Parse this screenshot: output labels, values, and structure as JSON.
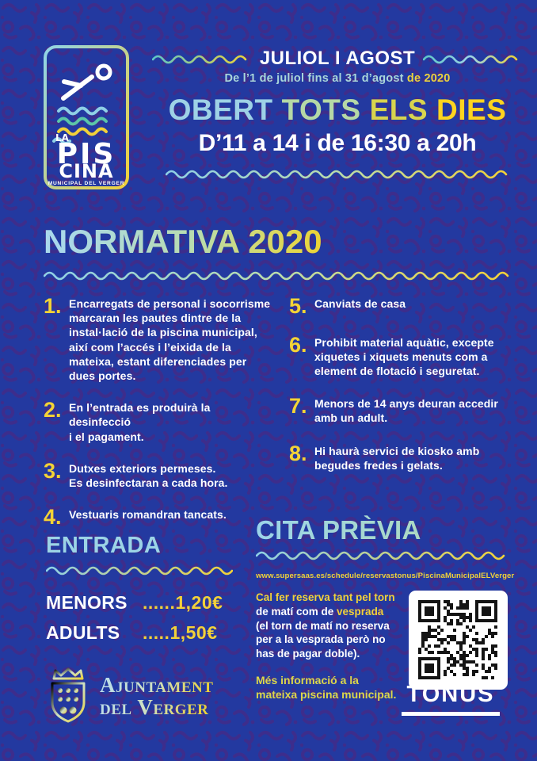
{
  "logo": {
    "la": "LA",
    "pis": "PIS",
    "cina": "CINA",
    "subtitle": "MUNICIPAL DEL VERGER"
  },
  "header": {
    "season": "JULIOL I AGOST",
    "date_main": "De l’1 de juliol fins al 31 d’agost ",
    "date_year": "de 2020",
    "open_words": [
      {
        "text": "OBERT",
        "color": "#9ed2e6"
      },
      {
        "text": "TOTS",
        "color": "#b5d9a6"
      },
      {
        "text": "ELS",
        "color": "#d8d44e"
      },
      {
        "text": "DIES",
        "color": "#fdd41f"
      }
    ],
    "hours": "D’11 a 14 i de 16:30 a 20h"
  },
  "normativa": {
    "title": "NORMATIVA 2020",
    "rules_left": [
      {
        "num": "1.",
        "text": "Encarregats de personal i socorrisme\nmarcaran les pautes dintre de la\ninstal·lació de la piscina municipal,\naixí com l’accés i l’eixida de la\nmateixa, estant diferenciades per\ndues portes."
      },
      {
        "num": "2.",
        "text": "En l’entrada es produirà la desinfecció\ni el pagament."
      },
      {
        "num": "3.",
        "text": "Dutxes exteriors permeses.\nEs desinfectaran a cada hora."
      },
      {
        "num": "4.",
        "text": "Vestuaris romandran tancats."
      }
    ],
    "rules_right": [
      {
        "num": "5.",
        "text": "Canviats de casa"
      },
      {
        "num": "6.",
        "text": "Prohibit material aquàtic, excepte\nxiquetes i xiquets menuts com a\nelement de flotació i seguretat."
      },
      {
        "num": "7.",
        "text": "Menors de 14 anys deuran accedir\namb un adult."
      },
      {
        "num": "8.",
        "text": "Hi haurà servici de kiosko amb\nbegudes fredes i gelats."
      }
    ]
  },
  "entrada": {
    "title": "ENTRADA",
    "rows": [
      {
        "label": "MENORS",
        "value": "......1,20€"
      },
      {
        "label": "ADULTS",
        "value": ".....1,50€"
      }
    ]
  },
  "cita": {
    "title": "CITA PRÈVIA",
    "url": "www.supersaas.es/schedule/reservastonus/PiscinaMunicipalELVerger",
    "note_segments": [
      {
        "text": "Cal fer reserva tant pel torn\n",
        "color": "#f2d139"
      },
      {
        "text": "de matí com de ",
        "color": "#ffffff"
      },
      {
        "text": "vesprada\n",
        "color": "#f2d139"
      },
      {
        "text": "(el torn de matí no reserva per a la vesprada però no has de pagar doble).",
        "color": "#ffffff"
      }
    ],
    "more_info": "Més informació a la\nmateixa piscina municipal."
  },
  "footer": {
    "ajuntament_line1": "Ajuntament",
    "ajuntament_line2": "del Verger",
    "tonus": "TONUS"
  },
  "colors": {
    "background_blue": "#2339a0",
    "pattern_blue": "#3d2d8c",
    "yellow": "#f2d139",
    "bright_yellow": "#fdd41f",
    "light_blue": "#9ed2e6",
    "pale_green": "#b5d9a6",
    "olive_yellow": "#d8d44e",
    "white": "#ffffff"
  }
}
